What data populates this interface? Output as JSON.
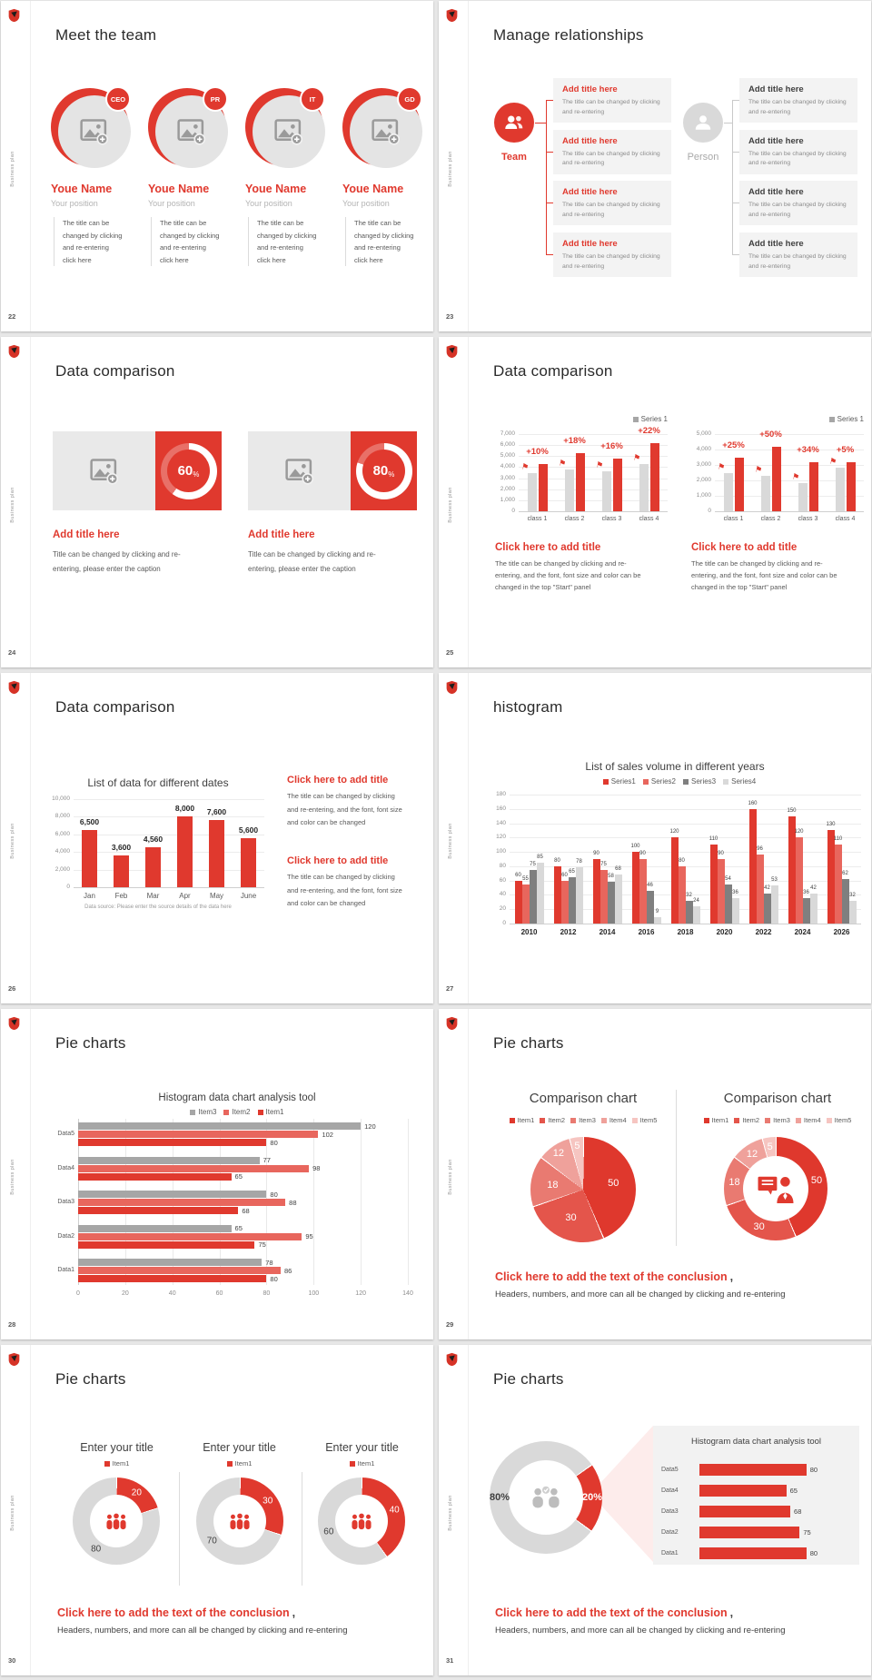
{
  "palette": {
    "red": "#e0392e",
    "red2": "#e8665d",
    "grayL": "#d9d9d9",
    "grayM": "#a6a6a6",
    "grayD": "#7f7f7f",
    "pie": [
      "#df382d",
      "#e4554b",
      "#e97a71",
      "#efa19b",
      "#f6c5c1"
    ]
  },
  "shared": {
    "sidebar": "Business plan",
    "conclusion_title": "Click here to add the text of the conclusion",
    "conclusion_comma": ",",
    "conclusion_sub": "Headers, numbers, and more can all be changed by clicking and re-entering"
  },
  "s22": {
    "page": "22",
    "title": "Meet the team",
    "name": "Youe Name",
    "position": "Your position",
    "body_lines": [
      "The title can be",
      "changed by clicking",
      "and re-entering",
      "click here"
    ],
    "members": [
      {
        "badge": "CEO"
      },
      {
        "badge": "PR"
      },
      {
        "badge": "IT"
      },
      {
        "badge": "GD"
      }
    ]
  },
  "s23": {
    "page": "23",
    "title": "Manage relationships",
    "team_label": "Team",
    "person_label": "Person",
    "box_title": "Add title here",
    "box_body_lines": [
      "The title can be changed by clicking",
      "and re-entering"
    ]
  },
  "s24": {
    "page": "24",
    "title": "Data comparison",
    "card_title": "Add title here",
    "card_body_lines": [
      "Title can be changed by clicking and re-",
      "entering, please enter the caption"
    ],
    "cards": [
      {
        "value": "60",
        "pct": 60
      },
      {
        "value": "80",
        "pct": 80
      }
    ]
  },
  "s25": {
    "page": "25",
    "title": "Data comparison",
    "block_title": "Click here to add title",
    "block_body_lines": [
      "The title can be changed by clicking and re-",
      "entering, and the font, font size and color can be",
      "changed in the top \"Start\" panel"
    ]
  },
  "s26": {
    "page": "26",
    "title": "Data comparison",
    "block_title": "Click here to add title",
    "block_body_lines": [
      "The title can be changed by clicking",
      "and re-entering, and the font, font size",
      "and color can be changed"
    ]
  },
  "s27": {
    "page": "27",
    "title": "histogram"
  },
  "s28": {
    "page": "28",
    "title": "Pie charts"
  },
  "s29": {
    "page": "29",
    "title": "Pie charts"
  },
  "s30": {
    "page": "30",
    "title": "Pie charts"
  },
  "s31": {
    "page": "31",
    "title": "Pie charts"
  },
  "chart_data": [
    {
      "id": "s25a",
      "type": "bar",
      "title": "",
      "legend": [
        "Series 1"
      ],
      "legend_colors": [
        "grayM"
      ],
      "categories": [
        "class 1",
        "class 2",
        "class 3",
        "class 4"
      ],
      "series": [
        {
          "name": "baseline",
          "color": "grayL",
          "values": [
            3500,
            3800,
            3650,
            4300
          ]
        },
        {
          "name": "Series 1",
          "color": "red",
          "values": [
            4250,
            5300,
            4800,
            6200
          ]
        }
      ],
      "growth_labels": [
        "+10%",
        "+18%",
        "+16%",
        "+22%"
      ],
      "ylim": [
        0,
        7000
      ],
      "yticks": [
        "0",
        "1,000",
        "2,000",
        "3,000",
        "4,000",
        "5,000",
        "6,000",
        "7,000"
      ]
    },
    {
      "id": "s25b",
      "type": "bar",
      "title": "",
      "legend": [
        "Series 1"
      ],
      "legend_colors": [
        "grayM"
      ],
      "categories": [
        "class 1",
        "class 2",
        "class 3",
        "class 4"
      ],
      "series": [
        {
          "name": "baseline",
          "color": "grayL",
          "values": [
            2500,
            2300,
            1800,
            2850
          ]
        },
        {
          "name": "Series 1",
          "color": "red",
          "values": [
            3500,
            4200,
            3200,
            3200
          ]
        }
      ],
      "growth_labels": [
        "+25%",
        "+50%",
        "+34%",
        "+5%"
      ],
      "ylim": [
        0,
        5000
      ],
      "yticks": [
        "0",
        "1,000",
        "2,000",
        "3,000",
        "4,000",
        "5,000"
      ]
    },
    {
      "id": "s26",
      "type": "bar",
      "title": "List of data for different dates",
      "categories": [
        "Jan",
        "Feb",
        "Mar",
        "Apr",
        "May",
        "June"
      ],
      "series": [
        {
          "name": "data",
          "color": "red",
          "values": [
            6500,
            3600,
            4560,
            8000,
            7600,
            5600
          ]
        }
      ],
      "bar_labels": [
        "6,500",
        "3,600",
        "4,560",
        "8,000",
        "7,600",
        "5,600"
      ],
      "ylim": [
        0,
        10000
      ],
      "yticks": [
        "0",
        "2,000",
        "4,000",
        "6,000",
        "8,000",
        "10,000"
      ],
      "source": "Data source: Please enter the source details of the data here"
    },
    {
      "id": "s27",
      "type": "bar",
      "title": "List of sales volume in different years",
      "legend": [
        "Series1",
        "Series2",
        "Series3",
        "Series4"
      ],
      "legend_colors": [
        "red",
        "red2",
        "grayD",
        "grayL"
      ],
      "categories": [
        "2010",
        "2012",
        "2014",
        "2016",
        "2018",
        "2020",
        "2022",
        "2024",
        "2026"
      ],
      "series": [
        {
          "name": "Series1",
          "color": "red",
          "values": [
            60,
            80,
            90,
            100,
            120,
            110,
            160,
            150,
            130
          ]
        },
        {
          "name": "Series2",
          "color": "red2",
          "values": [
            55,
            60,
            75,
            90,
            80,
            90,
            96,
            120,
            110
          ]
        },
        {
          "name": "Series3",
          "color": "grayD",
          "values": [
            75,
            65,
            58,
            46,
            32,
            54,
            42,
            36,
            62
          ]
        },
        {
          "name": "Series4",
          "color": "grayL",
          "values": [
            85,
            78,
            68,
            9,
            24,
            36,
            53,
            42,
            32
          ]
        }
      ],
      "ylim": [
        0,
        180
      ],
      "yticks": [
        "0",
        "20",
        "40",
        "60",
        "80",
        "100",
        "120",
        "140",
        "160",
        "180"
      ]
    },
    {
      "id": "s28",
      "type": "hbar",
      "title": "Histogram data chart analysis tool",
      "legend": [
        "Item3",
        "Item2",
        "Item1"
      ],
      "legend_colors": [
        "grayM",
        "red2",
        "red"
      ],
      "categories": [
        "Data5",
        "Data4",
        "Data3",
        "Data2",
        "Data1"
      ],
      "series": [
        {
          "name": "Item3",
          "color": "grayM",
          "values": [
            120,
            77,
            80,
            65,
            78
          ]
        },
        {
          "name": "Item2",
          "color": "red2",
          "values": [
            102,
            98,
            88,
            95,
            86
          ]
        },
        {
          "name": "Item1",
          "color": "red",
          "values": [
            80,
            65,
            68,
            75,
            80
          ]
        }
      ],
      "xlim": [
        0,
        140
      ],
      "xticks": [
        "0",
        "20",
        "40",
        "60",
        "80",
        "100",
        "120",
        "140"
      ]
    },
    {
      "id": "s29pie",
      "type": "pie",
      "title": "Comparison chart",
      "legend": [
        "Item1",
        "Item2",
        "Item3",
        "Item4",
        "Item5"
      ],
      "legend_colors": "pie",
      "values": [
        50,
        30,
        18,
        12,
        5
      ],
      "slice_colors": "pie"
    },
    {
      "id": "s29donut",
      "type": "donut",
      "title": "Comparison chart",
      "legend": [
        "Item1",
        "Item2",
        "Item3",
        "Item4",
        "Item5"
      ],
      "legend_colors": "pie",
      "values": [
        50,
        30,
        18,
        12,
        5
      ],
      "slice_colors": "pie"
    },
    {
      "id": "s30a",
      "type": "donut",
      "title": "Enter your title",
      "legend": [
        "Item1"
      ],
      "legend_colors": [
        "red"
      ],
      "values": [
        20,
        80
      ],
      "slice_colors": [
        "red",
        "grayL"
      ]
    },
    {
      "id": "s30b",
      "type": "donut",
      "title": "Enter your title",
      "legend": [
        "Item1"
      ],
      "legend_colors": [
        "red"
      ],
      "values": [
        30,
        70
      ],
      "slice_colors": [
        "red",
        "grayL"
      ]
    },
    {
      "id": "s30c",
      "type": "donut",
      "title": "Enter your title",
      "legend": [
        "Item1"
      ],
      "legend_colors": [
        "red"
      ],
      "values": [
        40,
        60
      ],
      "slice_colors": [
        "red",
        "grayL"
      ]
    },
    {
      "id": "s31donut",
      "type": "donut",
      "values": [
        20,
        80
      ],
      "labels": [
        "20%",
        "80%"
      ],
      "slice_colors": [
        "red",
        "grayL"
      ],
      "rotation": 54
    },
    {
      "id": "s31bars",
      "type": "hbar",
      "title": "Histogram data chart analysis tool",
      "categories": [
        "Data5",
        "Data4",
        "Data3",
        "Data2",
        "Data1"
      ],
      "series": [
        {
          "name": "value",
          "color": "red",
          "values": [
            80,
            65,
            68,
            75,
            80
          ]
        }
      ],
      "xlim": [
        0,
        140
      ]
    }
  ]
}
